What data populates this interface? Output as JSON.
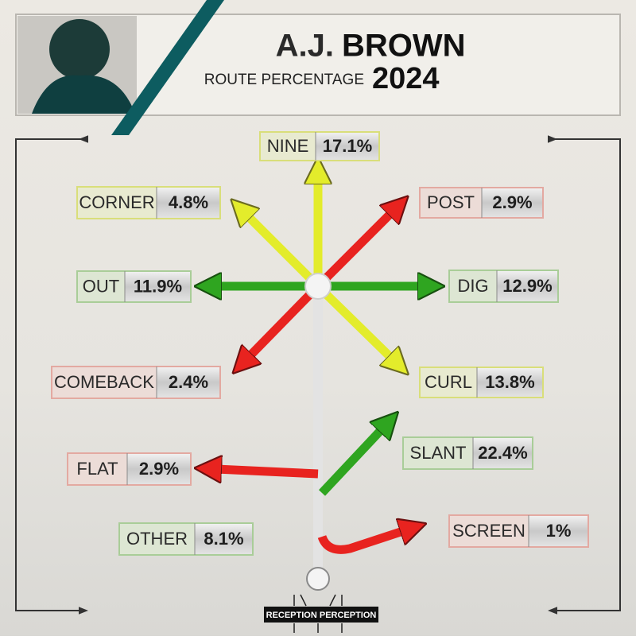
{
  "header": {
    "name_first": "A.J.",
    "name_last": "BROWN",
    "subtitle": "ROUTE PERCENTAGE",
    "year": "2024"
  },
  "routes": [
    {
      "name": "NINE",
      "value": "17.1%"
    },
    {
      "name": "CORNER",
      "value": "4.8%"
    },
    {
      "name": "POST",
      "value": "2.9%"
    },
    {
      "name": "OUT",
      "value": "11.9%"
    },
    {
      "name": "DIG",
      "value": "12.9%"
    },
    {
      "name": "COMEBACK",
      "value": "2.4%"
    },
    {
      "name": "CURL",
      "value": "13.8%"
    },
    {
      "name": "SLANT",
      "value": "22.4%"
    },
    {
      "name": "FLAT",
      "value": "2.9%"
    },
    {
      "name": "OTHER",
      "value": "8.1%"
    },
    {
      "name": "SCREEN",
      "value": "1%"
    }
  ],
  "footer": {
    "logo": "RECEPTION PERCEPTION"
  }
}
